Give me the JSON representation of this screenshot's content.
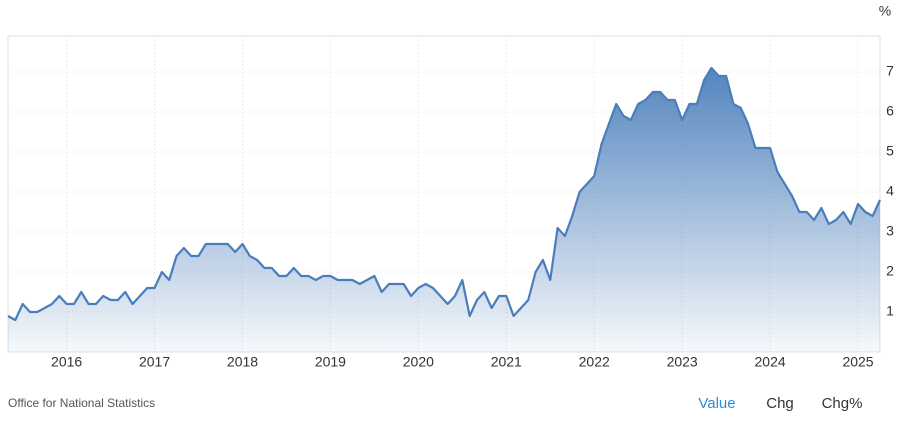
{
  "chart_data": {
    "type": "area",
    "unit": "%",
    "source": "Office for National Statistics",
    "buttons": [
      "Value",
      "Chg",
      "Chg%"
    ],
    "color": "#4a7ebb",
    "grid": true,
    "categories": [
      null,
      null,
      null,
      null,
      null,
      null,
      null,
      null,
      "2016",
      null,
      null,
      null,
      null,
      null,
      null,
      null,
      null,
      null,
      null,
      null,
      "2017",
      null,
      null,
      null,
      null,
      null,
      null,
      null,
      null,
      null,
      null,
      null,
      "2018",
      null,
      null,
      null,
      null,
      null,
      null,
      null,
      null,
      null,
      null,
      null,
      "2019",
      null,
      null,
      null,
      null,
      null,
      null,
      null,
      null,
      null,
      null,
      null,
      "2020",
      null,
      null,
      null,
      null,
      null,
      null,
      null,
      null,
      null,
      null,
      null,
      "2021",
      null,
      null,
      null,
      null,
      null,
      null,
      null,
      null,
      null,
      null,
      null,
      "2022",
      null,
      null,
      null,
      null,
      null,
      null,
      null,
      null,
      null,
      null,
      null,
      "2023",
      null,
      null,
      null,
      null,
      null,
      null,
      null,
      null,
      null,
      null,
      null,
      "2024",
      null,
      null,
      null,
      null,
      null,
      null,
      null,
      null,
      null,
      null,
      null,
      "2025",
      null,
      null,
      null
    ],
    "values": [
      0.9,
      0.8,
      1.2,
      1.0,
      1.0,
      1.1,
      1.2,
      1.4,
      1.2,
      1.2,
      1.5,
      1.2,
      1.2,
      1.4,
      1.3,
      1.3,
      1.5,
      1.2,
      1.4,
      1.6,
      1.6,
      2.0,
      1.8,
      2.4,
      2.6,
      2.4,
      2.4,
      2.7,
      2.7,
      2.7,
      2.7,
      2.5,
      2.7,
      2.4,
      2.3,
      2.1,
      2.1,
      1.9,
      1.9,
      2.1,
      1.9,
      1.9,
      1.8,
      1.9,
      1.9,
      1.8,
      1.8,
      1.8,
      1.7,
      1.8,
      1.9,
      1.5,
      1.7,
      1.7,
      1.7,
      1.4,
      1.6,
      1.7,
      1.6,
      1.4,
      1.2,
      1.4,
      1.8,
      0.9,
      1.3,
      1.5,
      1.1,
      1.4,
      1.4,
      0.9,
      1.1,
      1.3,
      2.0,
      2.3,
      1.8,
      3.1,
      2.9,
      3.4,
      4.0,
      4.2,
      4.4,
      5.2,
      5.7,
      6.2,
      5.9,
      5.8,
      6.2,
      6.3,
      6.5,
      6.5,
      6.3,
      6.3,
      5.8,
      6.2,
      6.2,
      6.8,
      7.1,
      6.9,
      6.9,
      6.2,
      6.1,
      5.7,
      5.1,
      5.1,
      5.1,
      4.5,
      4.2,
      3.9,
      3.5,
      3.5,
      3.3,
      3.6,
      3.2,
      3.3,
      3.5,
      3.2,
      3.7,
      3.5,
      3.4,
      3.8
    ],
    "ylim": [
      0,
      7.9
    ],
    "yticks": [
      1,
      2,
      3,
      4,
      5,
      6,
      7
    ]
  }
}
